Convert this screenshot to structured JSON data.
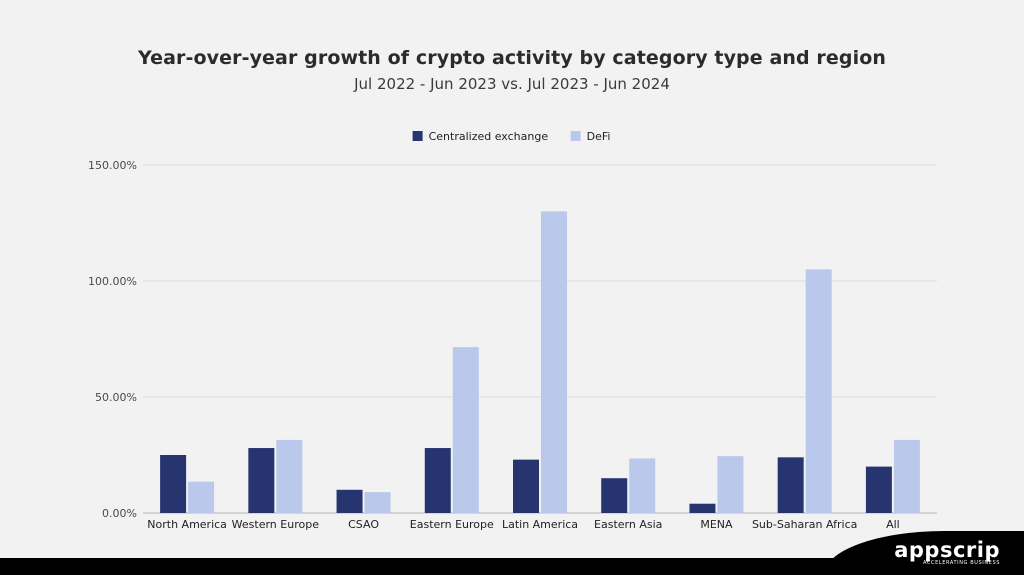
{
  "header": {
    "title": "Year-over-year growth of crypto activity by category type and region",
    "subtitle": "Jul 2022 - Jun 2023 vs. Jul 2023 - Jun 2024"
  },
  "brand": {
    "name": "appscrip",
    "tagline": "ACCELERATING BUSINESS"
  },
  "colors": {
    "centralized": "#263570",
    "defi": "#bac8ec",
    "grid": "#d9d9d9",
    "axis_text": "#4a4a4a"
  },
  "chart_data": {
    "type": "bar",
    "title": "Year-over-year growth of crypto activity by category type and region",
    "subtitle": "Jul 2022 - Jun 2023 vs. Jul 2023 - Jun 2024",
    "xlabel": "",
    "ylabel": "",
    "categories": [
      "North America",
      "Western Europe",
      "CSAO",
      "Eastern Europe",
      "Latin America",
      "Eastern Asia",
      "MENA",
      "Sub-Saharan Africa",
      "All"
    ],
    "series": [
      {
        "name": "Centralized exchange",
        "values": [
          25,
          28,
          10,
          28,
          23,
          15,
          4,
          24,
          20
        ]
      },
      {
        "name": "DeFi",
        "values": [
          13.5,
          31.5,
          9,
          71.5,
          130,
          23.5,
          24.5,
          105,
          31.5
        ]
      }
    ],
    "ylim": [
      0,
      150
    ],
    "yticks": [
      0,
      50,
      100,
      150
    ],
    "ytick_labels": [
      "0.00%",
      "50.00%",
      "100.00%",
      "150.00%"
    ],
    "legend_position": "top-center",
    "grid": true
  }
}
